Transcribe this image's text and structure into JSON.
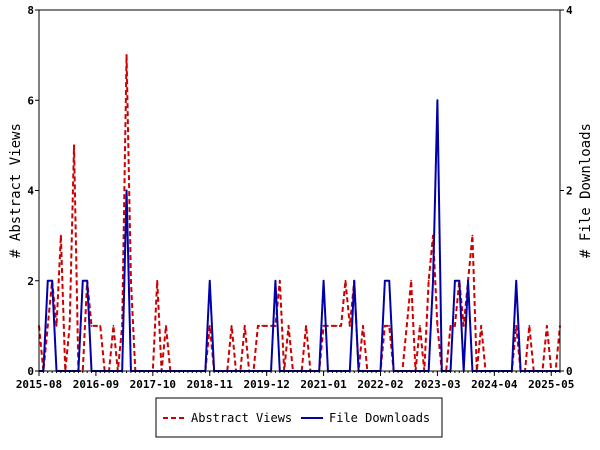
{
  "chart_data": {
    "type": "line",
    "title": "",
    "ylabel_left": "# Abstract Views",
    "ylabel_right": "# File Downloads",
    "ylim_left": [
      0,
      8
    ],
    "ylim_right": [
      0,
      4
    ],
    "yticks_left": [
      0,
      2,
      4,
      6,
      8
    ],
    "yticks_right": [
      0,
      2,
      4
    ],
    "x_range": [
      "2015-08",
      "2025-07"
    ],
    "xtick_labels": [
      "2015-08",
      "2016-09",
      "2017-10",
      "2018-11",
      "2019-12",
      "2021-01",
      "2022-02",
      "2023-03",
      "2024-04",
      "2025-05"
    ],
    "grid": false,
    "legend_position": "bottom",
    "series": [
      {
        "name": "Abstract Views",
        "color": "#cc0000",
        "style": "dashed",
        "axis": "left",
        "points": [
          [
            "2015-08",
            1
          ],
          [
            "2015-09",
            0
          ],
          [
            "2015-10",
            1
          ],
          [
            "2015-11",
            2
          ],
          [
            "2015-12",
            1
          ],
          [
            "2016-01",
            3
          ],
          [
            "2016-02",
            0
          ],
          [
            "2016-03",
            1
          ],
          [
            "2016-04",
            5
          ],
          [
            "2016-05",
            0
          ],
          [
            "2016-06",
            0
          ],
          [
            "2016-07",
            2
          ],
          [
            "2016-08",
            1
          ],
          [
            "2016-09",
            1
          ],
          [
            "2016-10",
            1
          ],
          [
            "2016-11",
            0
          ],
          [
            "2016-12",
            0
          ],
          [
            "2017-01",
            1
          ],
          [
            "2017-02",
            0
          ],
          [
            "2017-03",
            1
          ],
          [
            "2017-04",
            7
          ],
          [
            "2017-05",
            2
          ],
          [
            "2017-06",
            0
          ],
          [
            "2017-07",
            0
          ],
          [
            "2017-08",
            0
          ],
          [
            "2017-09",
            0
          ],
          [
            "2017-10",
            0
          ],
          [
            "2017-11",
            2
          ],
          [
            "2017-12",
            0
          ],
          [
            "2018-01",
            1
          ],
          [
            "2018-02",
            0
          ],
          [
            "2018-03",
            0
          ],
          [
            "2018-04",
            0
          ],
          [
            "2018-05",
            0
          ],
          [
            "2018-06",
            0
          ],
          [
            "2018-07",
            0
          ],
          [
            "2018-08",
            0
          ],
          [
            "2018-09",
            0
          ],
          [
            "2018-10",
            0
          ],
          [
            "2018-11",
            1
          ],
          [
            "2018-12",
            0
          ],
          [
            "2019-01",
            0
          ],
          [
            "2019-02",
            0
          ],
          [
            "2019-03",
            0
          ],
          [
            "2019-04",
            1
          ],
          [
            "2019-05",
            0
          ],
          [
            "2019-06",
            0
          ],
          [
            "2019-07",
            1
          ],
          [
            "2019-08",
            0
          ],
          [
            "2019-09",
            0
          ],
          [
            "2019-10",
            1
          ],
          [
            "2019-11",
            1
          ],
          [
            "2019-12",
            1
          ],
          [
            "2020-01",
            1
          ],
          [
            "2020-02",
            1
          ],
          [
            "2020-03",
            2
          ],
          [
            "2020-04",
            0
          ],
          [
            "2020-05",
            1
          ],
          [
            "2020-06",
            0
          ],
          [
            "2020-07",
            0
          ],
          [
            "2020-08",
            0
          ],
          [
            "2020-09",
            1
          ],
          [
            "2020-10",
            0
          ],
          [
            "2020-11",
            0
          ],
          [
            "2020-12",
            0
          ],
          [
            "2021-01",
            1
          ],
          [
            "2021-02",
            1
          ],
          [
            "2021-03",
            1
          ],
          [
            "2021-04",
            1
          ],
          [
            "2021-05",
            1
          ],
          [
            "2021-06",
            2
          ],
          [
            "2021-07",
            1
          ],
          [
            "2021-08",
            2
          ],
          [
            "2021-09",
            0
          ],
          [
            "2021-10",
            1
          ],
          [
            "2021-11",
            0
          ],
          [
            "2021-12",
            0
          ],
          [
            "2022-01",
            0
          ],
          [
            "2022-02",
            0
          ],
          [
            "2022-03",
            1
          ],
          [
            "2022-04",
            1
          ],
          [
            "2022-05",
            0
          ],
          [
            "2022-06",
            0
          ],
          [
            "2022-07",
            0
          ],
          [
            "2022-08",
            1
          ],
          [
            "2022-09",
            2
          ],
          [
            "2022-10",
            0
          ],
          [
            "2022-11",
            1
          ],
          [
            "2022-12",
            0
          ],
          [
            "2023-01",
            2
          ],
          [
            "2023-02",
            3
          ],
          [
            "2023-03",
            1
          ],
          [
            "2023-04",
            0
          ],
          [
            "2023-05",
            0
          ],
          [
            "2023-06",
            1
          ],
          [
            "2023-07",
            1
          ],
          [
            "2023-08",
            2
          ],
          [
            "2023-09",
            1
          ],
          [
            "2023-10",
            2
          ],
          [
            "2023-11",
            3
          ],
          [
            "2023-12",
            0
          ],
          [
            "2024-01",
            1
          ],
          [
            "2024-02",
            0
          ],
          [
            "2024-03",
            0
          ],
          [
            "2024-04",
            0
          ],
          [
            "2024-05",
            0
          ],
          [
            "2024-06",
            0
          ],
          [
            "2024-07",
            0
          ],
          [
            "2024-08",
            0
          ],
          [
            "2024-09",
            1
          ],
          [
            "2024-10",
            0
          ],
          [
            "2024-11",
            0
          ],
          [
            "2024-12",
            1
          ],
          [
            "2025-01",
            0
          ],
          [
            "2025-02",
            0
          ],
          [
            "2025-03",
            0
          ],
          [
            "2025-04",
            1
          ],
          [
            "2025-05",
            0
          ],
          [
            "2025-06",
            0
          ],
          [
            "2025-07",
            1
          ]
        ]
      },
      {
        "name": "File Downloads",
        "color": "#0000aa",
        "style": "solid",
        "axis": "right",
        "points": [
          [
            "2015-08",
            0
          ],
          [
            "2015-09",
            0
          ],
          [
            "2015-10",
            1
          ],
          [
            "2015-11",
            1
          ],
          [
            "2015-12",
            0
          ],
          [
            "2016-01",
            0
          ],
          [
            "2016-02",
            0
          ],
          [
            "2016-03",
            0
          ],
          [
            "2016-04",
            0
          ],
          [
            "2016-05",
            0
          ],
          [
            "2016-06",
            1
          ],
          [
            "2016-07",
            1
          ],
          [
            "2016-08",
            0
          ],
          [
            "2016-09",
            0
          ],
          [
            "2016-10",
            0
          ],
          [
            "2016-11",
            0
          ],
          [
            "2016-12",
            0
          ],
          [
            "2017-01",
            0
          ],
          [
            "2017-02",
            0
          ],
          [
            "2017-03",
            0
          ],
          [
            "2017-04",
            2
          ],
          [
            "2017-05",
            0
          ],
          [
            "2017-06",
            0
          ],
          [
            "2017-07",
            0
          ],
          [
            "2017-08",
            0
          ],
          [
            "2017-09",
            0
          ],
          [
            "2017-10",
            0
          ],
          [
            "2017-11",
            0
          ],
          [
            "2017-12",
            0
          ],
          [
            "2018-01",
            0
          ],
          [
            "2018-02",
            0
          ],
          [
            "2018-03",
            0
          ],
          [
            "2018-04",
            0
          ],
          [
            "2018-05",
            0
          ],
          [
            "2018-06",
            0
          ],
          [
            "2018-07",
            0
          ],
          [
            "2018-08",
            0
          ],
          [
            "2018-09",
            0
          ],
          [
            "2018-10",
            0
          ],
          [
            "2018-11",
            1
          ],
          [
            "2018-12",
            0
          ],
          [
            "2019-01",
            0
          ],
          [
            "2019-02",
            0
          ],
          [
            "2019-03",
            0
          ],
          [
            "2019-04",
            0
          ],
          [
            "2019-05",
            0
          ],
          [
            "2019-06",
            0
          ],
          [
            "2019-07",
            0
          ],
          [
            "2019-08",
            0
          ],
          [
            "2019-09",
            0
          ],
          [
            "2019-10",
            0
          ],
          [
            "2019-11",
            0
          ],
          [
            "2019-12",
            0
          ],
          [
            "2020-01",
            0
          ],
          [
            "2020-02",
            1
          ],
          [
            "2020-03",
            0
          ],
          [
            "2020-04",
            0
          ],
          [
            "2020-05",
            0
          ],
          [
            "2020-06",
            0
          ],
          [
            "2020-07",
            0
          ],
          [
            "2020-08",
            0
          ],
          [
            "2020-09",
            0
          ],
          [
            "2020-10",
            0
          ],
          [
            "2020-11",
            0
          ],
          [
            "2020-12",
            0
          ],
          [
            "2021-01",
            1
          ],
          [
            "2021-02",
            0
          ],
          [
            "2021-03",
            0
          ],
          [
            "2021-04",
            0
          ],
          [
            "2021-05",
            0
          ],
          [
            "2021-06",
            0
          ],
          [
            "2021-07",
            0
          ],
          [
            "2021-08",
            1
          ],
          [
            "2021-09",
            0
          ],
          [
            "2021-10",
            0
          ],
          [
            "2021-11",
            0
          ],
          [
            "2021-12",
            0
          ],
          [
            "2022-01",
            0
          ],
          [
            "2022-02",
            0
          ],
          [
            "2022-03",
            1
          ],
          [
            "2022-04",
            1
          ],
          [
            "2022-05",
            0
          ],
          [
            "2022-06",
            0
          ],
          [
            "2022-07",
            0
          ],
          [
            "2022-08",
            0
          ],
          [
            "2022-09",
            0
          ],
          [
            "2022-10",
            0
          ],
          [
            "2022-11",
            0
          ],
          [
            "2022-12",
            0
          ],
          [
            "2023-01",
            0
          ],
          [
            "2023-02",
            1
          ],
          [
            "2023-03",
            3
          ],
          [
            "2023-04",
            0
          ],
          [
            "2023-05",
            0
          ],
          [
            "2023-06",
            0
          ],
          [
            "2023-07",
            1
          ],
          [
            "2023-08",
            1
          ],
          [
            "2023-09",
            0
          ],
          [
            "2023-10",
            1
          ],
          [
            "2023-11",
            0
          ],
          [
            "2023-12",
            0
          ],
          [
            "2024-01",
            0
          ],
          [
            "2024-02",
            0
          ],
          [
            "2024-03",
            0
          ],
          [
            "2024-04",
            0
          ],
          [
            "2024-05",
            0
          ],
          [
            "2024-06",
            0
          ],
          [
            "2024-07",
            0
          ],
          [
            "2024-08",
            0
          ],
          [
            "2024-09",
            1
          ],
          [
            "2024-10",
            0
          ],
          [
            "2024-11",
            0
          ],
          [
            "2024-12",
            0
          ],
          [
            "2025-01",
            0
          ],
          [
            "2025-02",
            0
          ],
          [
            "2025-03",
            0
          ],
          [
            "2025-04",
            0
          ],
          [
            "2025-05",
            0
          ],
          [
            "2025-06",
            0
          ],
          [
            "2025-07",
            0
          ]
        ]
      }
    ]
  }
}
